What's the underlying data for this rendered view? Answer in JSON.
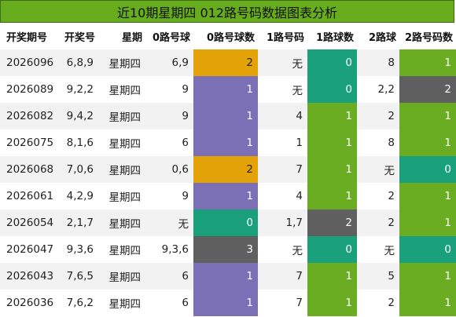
{
  "title": "近10期星期四 012路号码数据图表分析",
  "headers": [
    "开奖期号",
    "开奖号",
    "星期",
    "0路号球",
    "0路号球数",
    "1路号码",
    "1路球数",
    "2路球",
    "2路号码数"
  ],
  "colors": {
    "orange": "#e3a208",
    "purple": "#7b6fb6",
    "teal": "#1aa07a",
    "green": "#6aac22",
    "gray": "#5f5f5f"
  },
  "rows": [
    {
      "issue": "2026096",
      "nums": "6,8,9",
      "week": "星期四",
      "zero_ball": "6,9",
      "zero_count": "2",
      "zero_color": "orange",
      "one_ball": "无",
      "one_count": "0",
      "one_color": "teal",
      "two_ball": "8",
      "two_count": "1",
      "two_color": "green"
    },
    {
      "issue": "2026089",
      "nums": "9,2,2",
      "week": "星期四",
      "zero_ball": "9",
      "zero_count": "1",
      "zero_color": "purple",
      "one_ball": "无",
      "one_count": "0",
      "one_color": "teal",
      "two_ball": "2,2",
      "two_count": "2",
      "two_color": "gray"
    },
    {
      "issue": "2026082",
      "nums": "9,4,2",
      "week": "星期四",
      "zero_ball": "9",
      "zero_count": "1",
      "zero_color": "purple",
      "one_ball": "4",
      "one_count": "1",
      "one_color": "green",
      "two_ball": "2",
      "two_count": "1",
      "two_color": "green"
    },
    {
      "issue": "2026075",
      "nums": "8,1,6",
      "week": "星期四",
      "zero_ball": "6",
      "zero_count": "1",
      "zero_color": "purple",
      "one_ball": "1",
      "one_count": "1",
      "one_color": "green",
      "two_ball": "8",
      "two_count": "1",
      "two_color": "green"
    },
    {
      "issue": "2026068",
      "nums": "7,0,6",
      "week": "星期四",
      "zero_ball": "0,6",
      "zero_count": "2",
      "zero_color": "orange",
      "one_ball": "7",
      "one_count": "1",
      "one_color": "green",
      "two_ball": "无",
      "two_count": "0",
      "two_color": "teal"
    },
    {
      "issue": "2026061",
      "nums": "4,2,9",
      "week": "星期四",
      "zero_ball": "9",
      "zero_count": "1",
      "zero_color": "purple",
      "one_ball": "4",
      "one_count": "1",
      "one_color": "green",
      "two_ball": "2",
      "two_count": "1",
      "two_color": "green"
    },
    {
      "issue": "2026054",
      "nums": "2,1,7",
      "week": "星期四",
      "zero_ball": "无",
      "zero_count": "0",
      "zero_color": "teal",
      "one_ball": "1,7",
      "one_count": "2",
      "one_color": "gray",
      "two_ball": "2",
      "two_count": "1",
      "two_color": "green"
    },
    {
      "issue": "2026047",
      "nums": "9,3,6",
      "week": "星期四",
      "zero_ball": "9,3,6",
      "zero_count": "3",
      "zero_color": "gray",
      "one_ball": "无",
      "one_count": "0",
      "one_color": "teal",
      "two_ball": "无",
      "two_count": "0",
      "two_color": "teal"
    },
    {
      "issue": "2026043",
      "nums": "7,6,5",
      "week": "星期四",
      "zero_ball": "6",
      "zero_count": "1",
      "zero_color": "purple",
      "one_ball": "7",
      "one_count": "1",
      "one_color": "green",
      "two_ball": "5",
      "two_count": "1",
      "two_color": "green"
    },
    {
      "issue": "2026036",
      "nums": "7,6,2",
      "week": "星期四",
      "zero_ball": "6",
      "zero_count": "1",
      "zero_color": "purple",
      "one_ball": "7",
      "one_count": "1",
      "one_color": "green",
      "two_ball": "2",
      "two_count": "1",
      "two_color": "green"
    }
  ]
}
